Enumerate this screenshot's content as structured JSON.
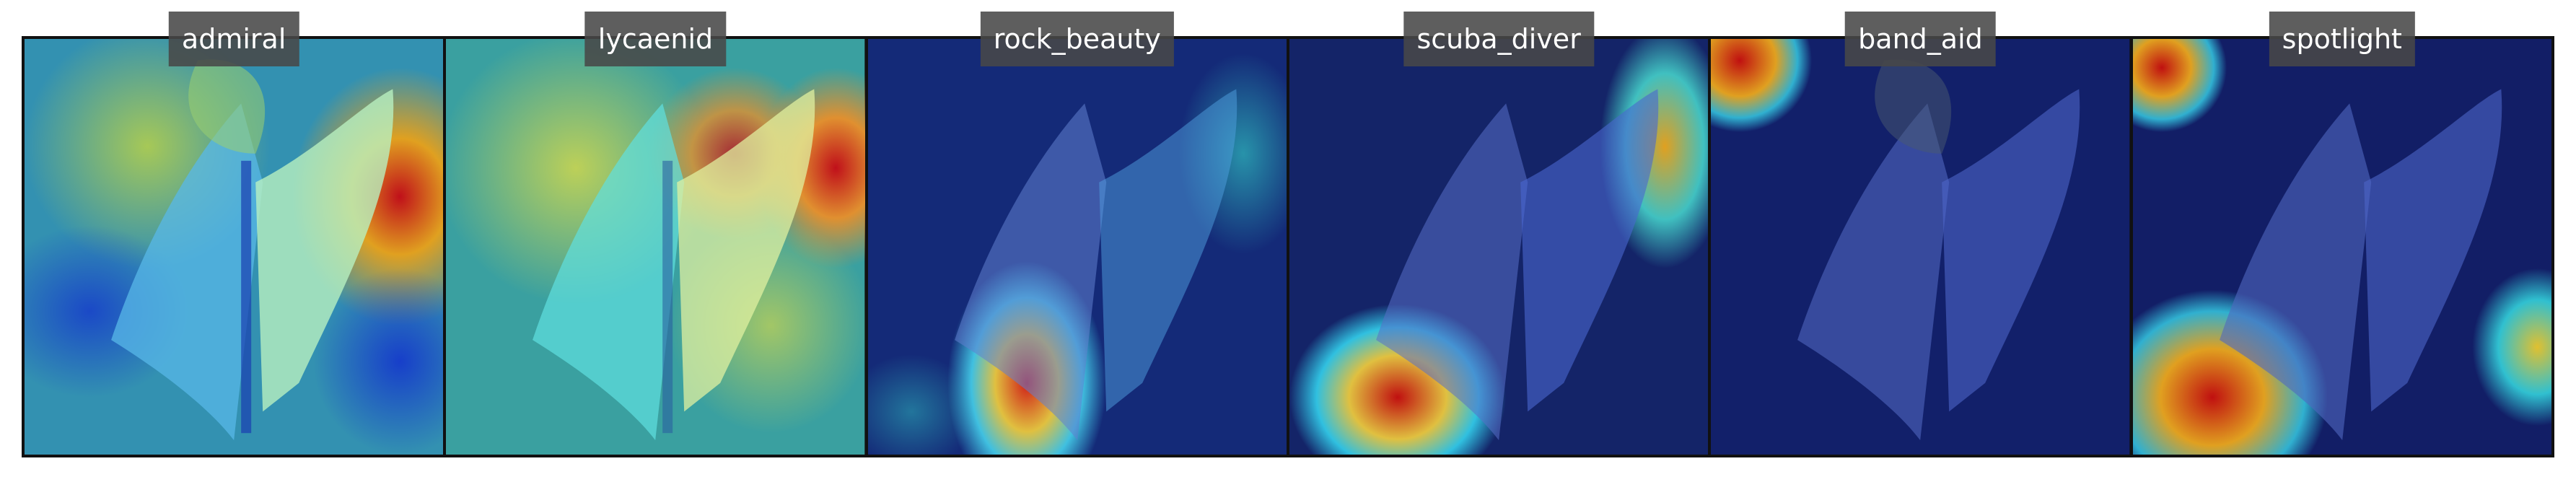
{
  "panels": [
    {
      "label": "admiral",
      "hot_region": "right edge, behind right wing",
      "overlay_tint": "#2f7fbf"
    },
    {
      "label": "lycaenid",
      "hot_region": "right wing and right edge",
      "overlay_tint": "#3aa7a7"
    },
    {
      "label": "rock_beauty",
      "hot_region": "lower center, below body",
      "overlay_tint": "#1b2f7a"
    },
    {
      "label": "scuba_diver",
      "hot_region": "bottom left and top right",
      "overlay_tint": "#1b2a6a"
    },
    {
      "label": "band_aid",
      "hot_region": "top left corner",
      "overlay_tint": "#14206a"
    },
    {
      "label": "spotlight",
      "hot_region": "top left and bottom left",
      "overlay_tint": "#141f68"
    }
  ],
  "colors": {
    "heat_low": "#0a1a8c",
    "heat_mid": "#20c0d0",
    "heat_high": "#d0141a",
    "frame": "#111111",
    "label_bg": "#484848",
    "label_text": "#ffffff"
  }
}
